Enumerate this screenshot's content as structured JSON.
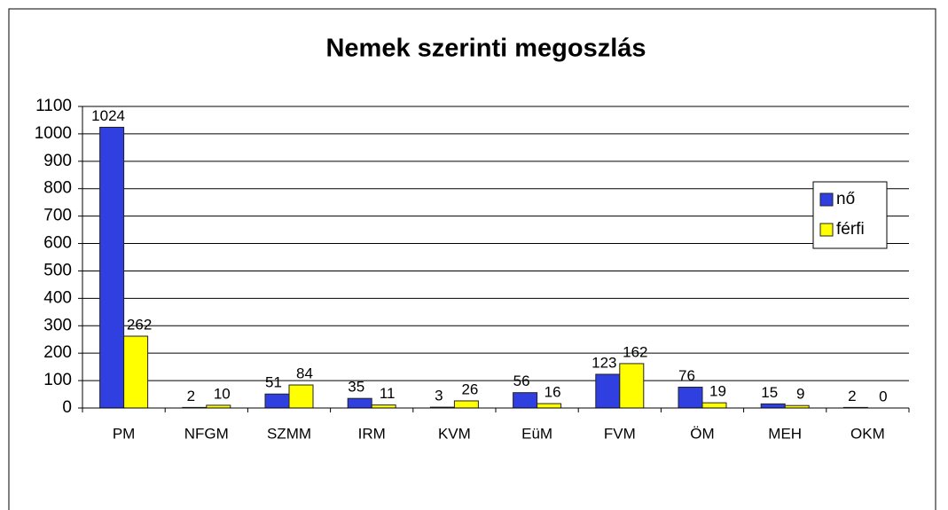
{
  "chart_data": {
    "type": "bar",
    "title": "Nemek szerinti megoszlás",
    "categories": [
      "PM",
      "NFGM",
      "SZMM",
      "IRM",
      "KVM",
      "EüM",
      "FVM",
      "ÖM",
      "MEH",
      "OKM"
    ],
    "series": [
      {
        "name": "nő",
        "color": "#3040e0",
        "values": [
          1024,
          2,
          51,
          35,
          3,
          56,
          123,
          76,
          15,
          2
        ]
      },
      {
        "name": "férfi",
        "color": "#ffff00",
        "values": [
          262,
          10,
          84,
          11,
          26,
          16,
          162,
          19,
          9,
          0
        ]
      }
    ],
    "ylim": [
      0,
      1100
    ],
    "yticks": [
      0,
      100,
      200,
      300,
      400,
      500,
      600,
      700,
      800,
      900,
      1000,
      1100
    ],
    "grid": true,
    "legend": "right"
  }
}
